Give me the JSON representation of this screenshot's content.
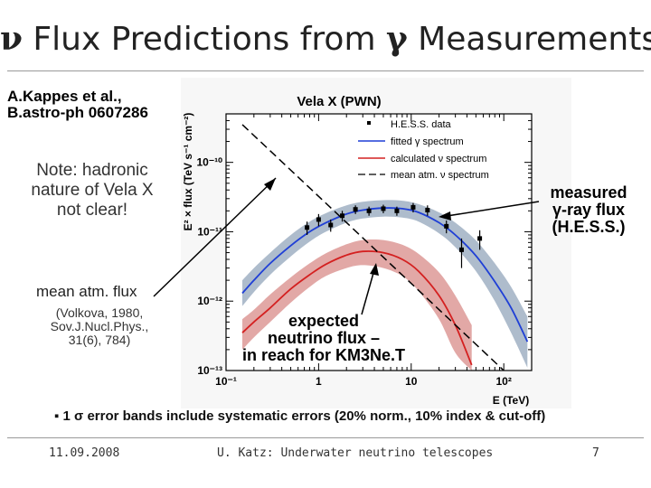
{
  "slide": {
    "title_prefix": "ν",
    "title_mid": " Flux Predictions from ",
    "title_greek": "γ",
    "title_suffix": " Measurements",
    "reference_line1": "A.Kappes et al.,",
    "reference_line2": "B.astro-ph 0607286",
    "note_lines": [
      "Note: hadronic",
      "nature of Vela X",
      "not clear!"
    ],
    "atm_label": "mean atm. flux",
    "atm_citation_lines": [
      "(Volkova, 1980,",
      "Sov.J.Nucl.Phys.,",
      "31(6), 784)"
    ],
    "measured_lines": [
      "measured",
      "γ-ray flux",
      "(H.E.S.S.)"
    ],
    "expected_lines": [
      "expected",
      "neutrino flux –",
      "in reach for KM3Ne.T"
    ],
    "bullet_symbol": "▪",
    "bullet_text": "1 σ error bands include systematic errors (20% norm., 10% index & cut-off)",
    "footer_date": "11.09.2008",
    "footer_center": "U. Katz: Underwater neutrino telescopes",
    "footer_page": "7"
  },
  "chart_data": {
    "type": "line",
    "title": "Vela X (PWN)",
    "xlabel": "E (TeV)",
    "ylabel": "E² × flux (TeV s⁻¹ cm⁻²)",
    "x_scale": "log",
    "y_scale": "log",
    "xlim": [
      0.1,
      200
    ],
    "ylim": [
      1e-13,
      5e-10
    ],
    "x_tick_labels": [
      "10⁻¹",
      "1",
      "10",
      "10²"
    ],
    "y_tick_labels": [
      "10⁻¹⁰",
      "10⁻¹¹",
      "10⁻¹²",
      "10⁻¹³"
    ],
    "legend_position": "top-right",
    "legend": [
      {
        "label": "H.E.S.S. data",
        "style": "marker",
        "color": "#000000"
      },
      {
        "label": "fitted γ spectrum",
        "style": "line",
        "color": "#1f3fd6"
      },
      {
        "label": "calculated ν spectrum",
        "style": "line",
        "color": "#d42020"
      },
      {
        "label": "mean atm. ν spectrum",
        "style": "dashed",
        "color": "#000000"
      }
    ],
    "series": [
      {
        "name": "H.E.S.S. data",
        "kind": "points",
        "x": [
          0.75,
          1.0,
          1.35,
          1.8,
          2.5,
          3.5,
          5.0,
          7.0,
          10.5,
          15.0,
          24.0,
          35.0,
          55.0
        ],
        "y": [
          1.15e-11,
          1.5e-11,
          1.25e-11,
          1.7e-11,
          2.1e-11,
          2e-11,
          2.15e-11,
          2e-11,
          2.25e-11,
          2.05e-11,
          1.2e-11,
          5.5e-12,
          8e-12
        ],
        "err_low": [
          9e-12,
          1.2e-11,
          1e-11,
          1.4e-11,
          1.8e-11,
          1.7e-11,
          1.85e-11,
          1.7e-11,
          1.9e-11,
          1.7e-11,
          9.5e-12,
          3e-12,
          5.5e-12
        ],
        "err_high": [
          1.4e-11,
          1.8e-11,
          1.5e-11,
          2e-11,
          2.4e-11,
          2.3e-11,
          2.45e-11,
          2.3e-11,
          2.6e-11,
          2.4e-11,
          1.45e-11,
          8e-12,
          1.05e-11
        ]
      },
      {
        "name": "fitted γ spectrum",
        "kind": "curve",
        "color": "#1f3fd6",
        "x": [
          0.15,
          0.2,
          0.3,
          0.5,
          0.8,
          1.2,
          2,
          3,
          5,
          8,
          12,
          20,
          30,
          50,
          80,
          120,
          180
        ],
        "y": [
          1.3e-12,
          2e-12,
          3.5e-12,
          6.3e-12,
          1e-11,
          1.35e-11,
          1.8e-11,
          2.05e-11,
          2.2e-11,
          2.15e-11,
          1.9e-11,
          1.35e-11,
          9e-12,
          4.5e-12,
          1.9e-12,
          8e-13,
          2.6e-13
        ],
        "band_low": [
          8.5e-13,
          1.35e-12,
          2.4e-12,
          4.4e-12,
          7.2e-12,
          1e-11,
          1.35e-11,
          1.55e-11,
          1.65e-11,
          1.6e-11,
          1.4e-11,
          9.5e-12,
          6e-12,
          2.7e-12,
          1e-12,
          3.5e-13,
          1.1e-13
        ],
        "band_high": [
          2e-12,
          3e-12,
          5e-12,
          9e-12,
          1.4e-11,
          1.85e-11,
          2.4e-11,
          2.7e-11,
          2.85e-11,
          2.8e-11,
          2.5e-11,
          1.9e-11,
          1.35e-11,
          7.5e-12,
          3.5e-12,
          1.6e-12,
          6e-13
        ]
      },
      {
        "name": "calculated ν spectrum",
        "kind": "curve",
        "color": "#d42020",
        "x": [
          0.15,
          0.2,
          0.3,
          0.5,
          0.8,
          1.2,
          2,
          3,
          5,
          8,
          12,
          20,
          30,
          45
        ],
        "y": [
          3.5e-13,
          5e-13,
          8e-13,
          1.5e-12,
          2.4e-12,
          3.4e-12,
          4.6e-12,
          5.2e-12,
          5e-12,
          4e-12,
          2.7e-12,
          1.2e-12,
          4.5e-13,
          1.2e-13
        ],
        "band_low": [
          2e-13,
          3e-13,
          5e-13,
          9.5e-13,
          1.6e-12,
          2.3e-12,
          3e-12,
          3.3e-12,
          3e-12,
          2.3e-12,
          1.4e-12,
          5.5e-13,
          1.8e-13,
          1e-13
        ],
        "band_high": [
          5.5e-13,
          7.5e-13,
          1.25e-12,
          2.2e-12,
          3.5e-12,
          4.9e-12,
          6.6e-12,
          7.6e-12,
          7.6e-12,
          6.5e-12,
          4.8e-12,
          2.6e-12,
          1.2e-12,
          4.5e-13
        ]
      },
      {
        "name": "mean atm. ν spectrum",
        "kind": "dashed",
        "color": "#000000",
        "x": [
          0.15,
          100
        ],
        "y": [
          3.5e-10,
          1e-13
        ]
      }
    ]
  }
}
